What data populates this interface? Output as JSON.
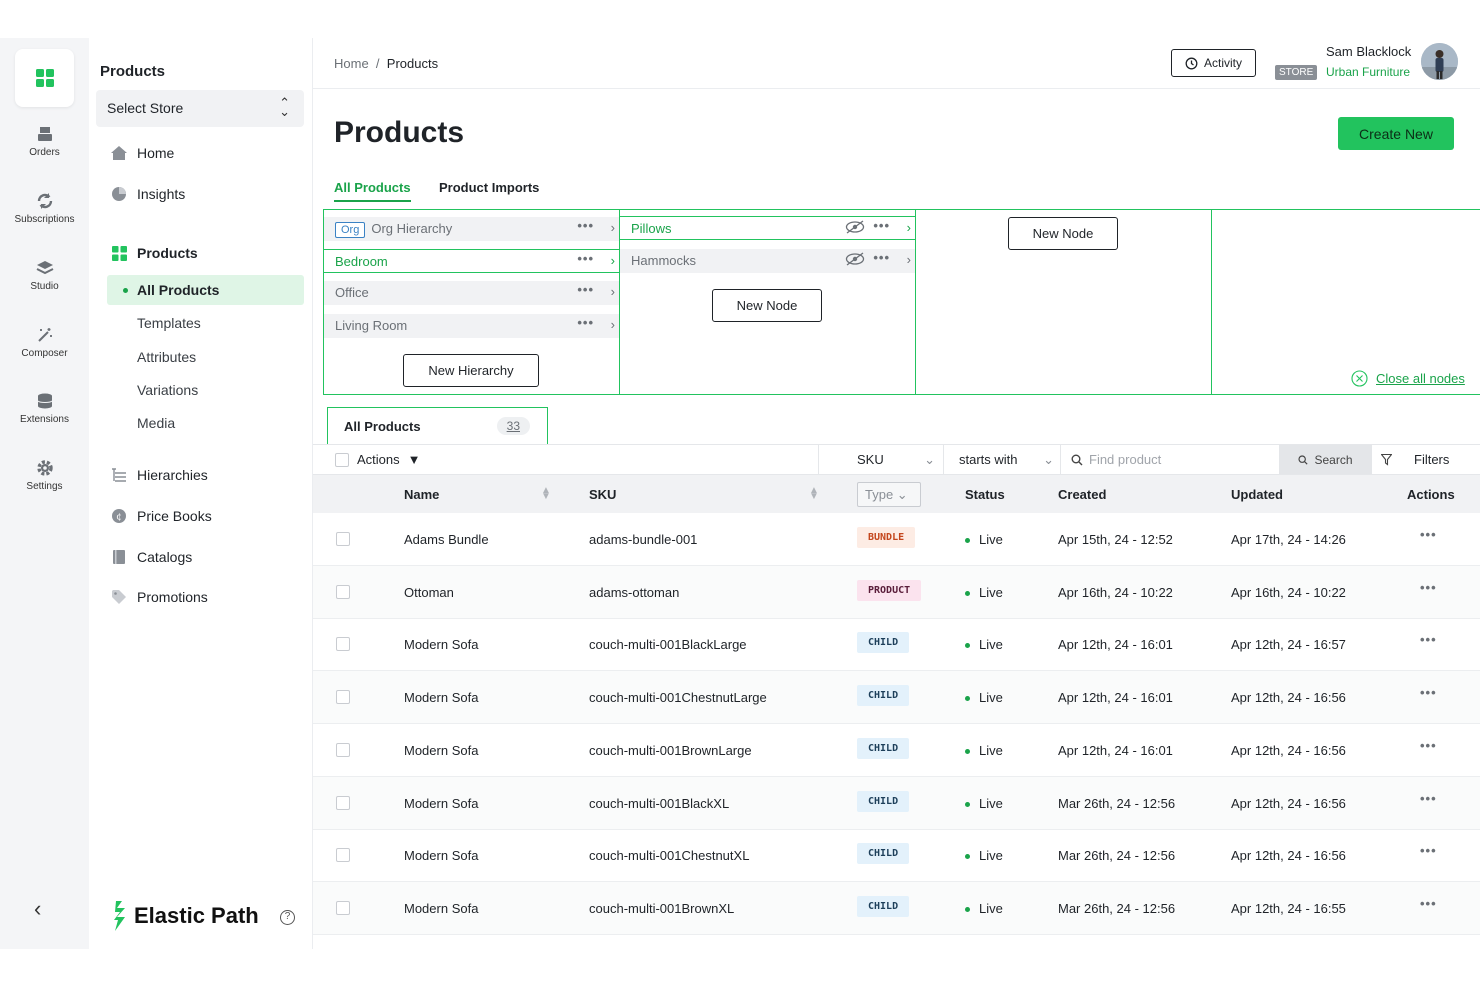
{
  "rail": {
    "items": [
      {
        "label": "Orders",
        "icon": "register-icon"
      },
      {
        "label": "Subscriptions",
        "icon": "refresh-icon"
      },
      {
        "label": "Studio",
        "icon": "layers-icon"
      },
      {
        "label": "Composer",
        "icon": "magic-wand-icon"
      },
      {
        "label": "Extensions",
        "icon": "database-icon"
      },
      {
        "label": "Settings",
        "icon": "gear-icon"
      }
    ],
    "collapse": "‹"
  },
  "sidenav": {
    "title": "Products",
    "store_select": "Select Store",
    "home": "Home",
    "insights": "Insights",
    "products": "Products",
    "all_products": "All Products",
    "sub_items": [
      "Templates",
      "Attributes",
      "Variations",
      "Media"
    ],
    "hierarchies": "Hierarchies",
    "price_books": "Price Books",
    "catalogs": "Catalogs",
    "promotions": "Promotions",
    "brand": "Elastic Path",
    "help": "?"
  },
  "header": {
    "breadcrumb_home": "Home",
    "breadcrumb_sep": "/",
    "breadcrumb_current": "Products",
    "activity": "Activity",
    "user_name": "Sam Blacklock",
    "store_badge": "STORE",
    "store_name": "Urban Furniture"
  },
  "page": {
    "title": "Products",
    "create_new": "Create New",
    "tabs": [
      "All Products",
      "Product Imports"
    ]
  },
  "hierarchy": {
    "col1": {
      "org_tag": "Org",
      "rows": [
        "Org Hierarchy",
        "Bedroom",
        "Office",
        "Living Room"
      ],
      "button": "New Hierarchy"
    },
    "col2": {
      "rows": [
        "Pillows",
        "Hammocks"
      ],
      "button": "New Node"
    },
    "col3": {
      "button": "New Node"
    },
    "close_all": "Close all nodes"
  },
  "table": {
    "tab_label": "All Products",
    "tab_count": "33",
    "actions_label": "Actions",
    "filter_field": "SKU",
    "filter_op": "starts with",
    "search_placeholder": "Find product",
    "search_button": "Search",
    "filters_button": "Filters",
    "headers": {
      "name": "Name",
      "sku": "SKU",
      "type": "Type",
      "status": "Status",
      "created": "Created",
      "updated": "Updated",
      "actions": "Actions"
    },
    "rows": [
      {
        "name": "Adams Bundle",
        "sku": "adams-bundle-001",
        "type": "BUNDLE",
        "status": "Live",
        "created": "Apr 15th, 24 - 12:52",
        "updated": "Apr 17th, 24 - 14:26"
      },
      {
        "name": "Ottoman",
        "sku": "adams-ottoman",
        "type": "PRODUCT",
        "status": "Live",
        "created": "Apr 16th, 24 - 10:22",
        "updated": "Apr 16th, 24 - 10:22"
      },
      {
        "name": "Modern Sofa",
        "sku": "couch-multi-001BlackLarge",
        "type": "CHILD",
        "status": "Live",
        "created": "Apr 12th, 24 - 16:01",
        "updated": "Apr 12th, 24 - 16:57"
      },
      {
        "name": "Modern Sofa",
        "sku": "couch-multi-001ChestnutLarge",
        "type": "CHILD",
        "status": "Live",
        "created": "Apr 12th, 24 - 16:01",
        "updated": "Apr 12th, 24 - 16:56"
      },
      {
        "name": "Modern Sofa",
        "sku": "couch-multi-001BrownLarge",
        "type": "CHILD",
        "status": "Live",
        "created": "Apr 12th, 24 - 16:01",
        "updated": "Apr 12th, 24 - 16:56"
      },
      {
        "name": "Modern Sofa",
        "sku": "couch-multi-001BlackXL",
        "type": "CHILD",
        "status": "Live",
        "created": "Mar 26th, 24 - 12:56",
        "updated": "Apr 12th, 24 - 16:56"
      },
      {
        "name": "Modern Sofa",
        "sku": "couch-multi-001ChestnutXL",
        "type": "CHILD",
        "status": "Live",
        "created": "Mar 26th, 24 - 12:56",
        "updated": "Apr 12th, 24 - 16:56"
      },
      {
        "name": "Modern Sofa",
        "sku": "couch-multi-001BrownXL",
        "type": "CHILD",
        "status": "Live",
        "created": "Mar 26th, 24 - 12:56",
        "updated": "Apr 12th, 24 - 16:55"
      }
    ]
  },
  "colors": {
    "accent": "#22c35e",
    "accent_text": "#1aa34a",
    "bundle_bg": "#fdece4",
    "bundle_fg": "#c4461c",
    "product_bg": "#fbe3ee",
    "product_fg": "#5a1d3a",
    "child_bg": "#e3f1fb",
    "child_fg": "#1d3f5a"
  }
}
